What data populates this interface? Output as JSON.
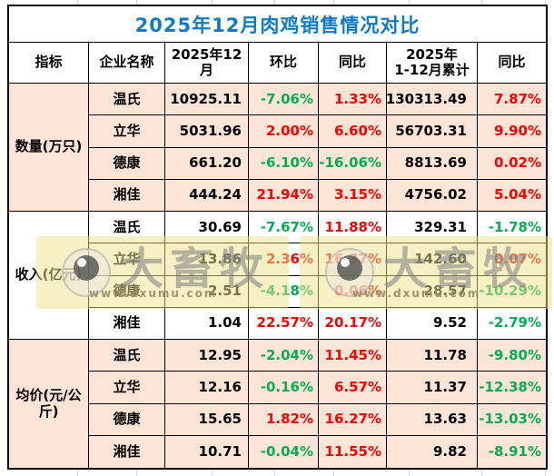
{
  "colors": {
    "title_blue": "#0E7AC8",
    "up_red": "#FE0000",
    "down_green": "#00B050",
    "peach": "#FCE4D6",
    "white": "#FFFFFF"
  },
  "watermark": {
    "brand": "大畜牧",
    "url": "www.dxumu.com"
  },
  "chart_data": {
    "type": "table",
    "title": "2025年12月肉鸡销售情况对比",
    "columns": [
      "指标",
      "企业名称",
      "2025年12月",
      "环比",
      "同比",
      "2025年\n1-12月累计",
      "同比"
    ],
    "sections": [
      {
        "label": "数量(万只)",
        "bg": "#FCE4D6",
        "rows": [
          {
            "company": "温氏",
            "month": "10925.11",
            "mom": "-7.06%",
            "yoy": "1.33%",
            "cum": "130313.49",
            "cum_yoy": "7.87%"
          },
          {
            "company": "立华",
            "month": "5031.96",
            "mom": "2.00%",
            "yoy": "6.60%",
            "cum": "56703.31",
            "cum_yoy": "9.90%"
          },
          {
            "company": "德康",
            "month": "661.20",
            "mom": "-6.10%",
            "yoy": "-16.06%",
            "cum": "8813.69",
            "cum_yoy": "0.02%"
          },
          {
            "company": "湘佳",
            "month": "444.24",
            "mom": "21.94%",
            "yoy": "3.15%",
            "cum": "4756.02",
            "cum_yoy": "5.04%"
          }
        ]
      },
      {
        "label": "收入(亿元)",
        "bg": "#FFFFFF",
        "rows": [
          {
            "company": "温氏",
            "month": "30.69",
            "mom": "-7.67%",
            "yoy": "11.88%",
            "cum": "329.31",
            "cum_yoy": "-1.78%"
          },
          {
            "company": "立华",
            "month": "13.86",
            "mom": "2.36%",
            "yoy": "16.37%",
            "cum": "142.60",
            "cum_yoy": "0.07%"
          },
          {
            "company": "德康",
            "month": "2.51",
            "mom": "-4.18%",
            "yoy": "0.06%",
            "cum": "28.57",
            "cum_yoy": "-10.29%"
          },
          {
            "company": "湘佳",
            "month": "1.04",
            "mom": "22.57%",
            "yoy": "20.17%",
            "cum": "9.52",
            "cum_yoy": "-2.79%"
          }
        ]
      },
      {
        "label": "均价(元/公斤)",
        "bg": "#FCE4D6",
        "rows": [
          {
            "company": "温氏",
            "month": "12.95",
            "mom": "-2.04%",
            "yoy": "11.45%",
            "cum": "11.78",
            "cum_yoy": "-9.80%"
          },
          {
            "company": "立华",
            "month": "12.16",
            "mom": "-0.16%",
            "yoy": "6.57%",
            "cum": "11.37",
            "cum_yoy": "-12.38%"
          },
          {
            "company": "德康",
            "month": "15.65",
            "mom": "1.82%",
            "yoy": "16.27%",
            "cum": "13.63",
            "cum_yoy": "-13.03%"
          },
          {
            "company": "湘佳",
            "month": "10.71",
            "mom": "-0.04%",
            "yoy": "11.55%",
            "cum": "9.82",
            "cum_yoy": "-8.91%"
          }
        ]
      }
    ]
  }
}
